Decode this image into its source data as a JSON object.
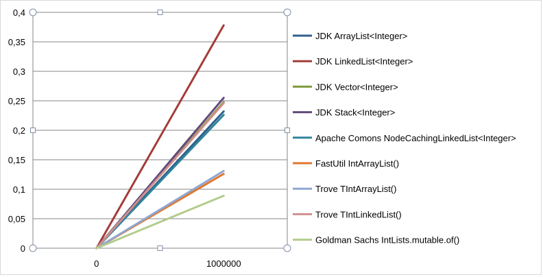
{
  "chart_data": {
    "type": "line",
    "categories": [
      "0",
      "1000000"
    ],
    "ylim": [
      0,
      0.4
    ],
    "y_ticks": [
      "0",
      "0,05",
      "0,1",
      "0,15",
      "0,2",
      "0,25",
      "0,3",
      "0,35",
      "0,4"
    ],
    "grid": true,
    "legend_position": "right",
    "series": [
      {
        "name": "JDK ArrayList<Integer>",
        "color": "#2e5f8c",
        "values": [
          0,
          0.232
        ]
      },
      {
        "name": "JDK LinkedList<Integer>",
        "color": "#a33c3a",
        "values": [
          0,
          0.378
        ]
      },
      {
        "name": "JDK Vector<Integer>",
        "color": "#7f9a3c",
        "values": [
          0,
          0.248
        ]
      },
      {
        "name": "JDK Stack<Integer>",
        "color": "#604a7b",
        "values": [
          0,
          0.255
        ]
      },
      {
        "name": "Apache Comons NodeCachingLinkedList<Integer>",
        "color": "#31849b",
        "values": [
          0,
          0.226
        ]
      },
      {
        "name": "FastUtil IntArrayList()",
        "color": "#e3762c",
        "values": [
          0,
          0.126
        ]
      },
      {
        "name": "Trove TIntArrayList()",
        "color": "#8ea7d0",
        "values": [
          0,
          0.131
        ]
      },
      {
        "name": "Trove TIntLinkedList()",
        "color": "#d08f8b",
        "values": [
          0,
          0.246
        ]
      },
      {
        "name": "Goldman Sachs IntLists.mutable.of()",
        "color": "#b2cc8c",
        "values": [
          0,
          0.089
        ]
      }
    ]
  }
}
